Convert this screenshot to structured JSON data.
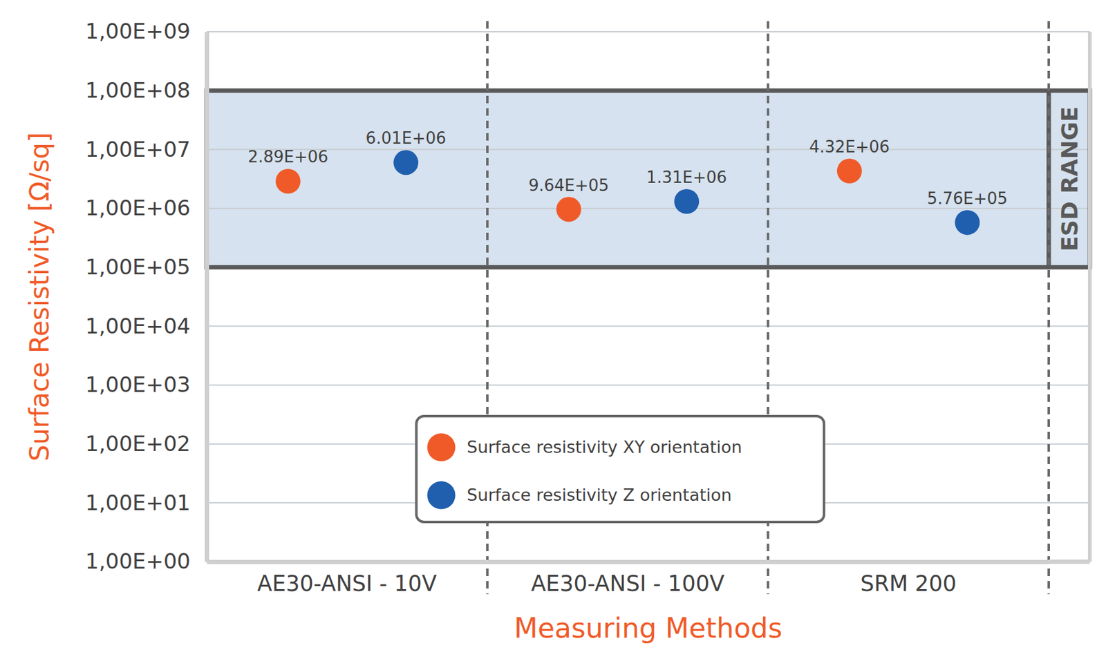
{
  "chart_data": {
    "type": "scatter",
    "x_label": "Measuring Methods",
    "y_label": "Surface Resistivity [Ω/sq]",
    "categories": [
      "AE30-ANSI - 10V",
      "AE30-ANSI - 100V",
      "SRM 200"
    ],
    "series": [
      {
        "name": "Surface resistivity XY orientation",
        "color": "#f05a28",
        "marker": "circle",
        "values": [
          2890000,
          964000,
          4320000
        ],
        "value_labels": [
          "2.89E+06",
          "9.64E+05",
          "4.32E+06"
        ]
      },
      {
        "name": "Surface resistivity Z orientation",
        "color": "#1f5fae",
        "marker": "circle",
        "values": [
          6010000,
          1310000,
          576000
        ],
        "value_labels": [
          "6.01E+06",
          "1.31E+06",
          "5.76E+05"
        ]
      }
    ],
    "ylim": [
      1,
      1000000000
    ],
    "yticks": [
      {
        "value": 1,
        "label": "1,00E+00"
      },
      {
        "value": 10,
        "label": "1,00E+01"
      },
      {
        "value": 100,
        "label": "1,00E+02"
      },
      {
        "value": 1000,
        "label": "1,00E+03"
      },
      {
        "value": 10000,
        "label": "1,00E+04"
      },
      {
        "value": 100000,
        "label": "1,00E+05"
      },
      {
        "value": 1000000,
        "label": "1,00E+06"
      },
      {
        "value": 10000000,
        "label": "1,00E+07"
      },
      {
        "value": 100000000,
        "label": "1,00E+08"
      },
      {
        "value": 1000000000,
        "label": "1,00E+09"
      }
    ],
    "log": "y",
    "grid": true,
    "legend": "bottom",
    "data_labels": true,
    "annotations": [
      {
        "label": "ESD RANGE",
        "y0": 100000,
        "y1": 100000000
      }
    ]
  }
}
